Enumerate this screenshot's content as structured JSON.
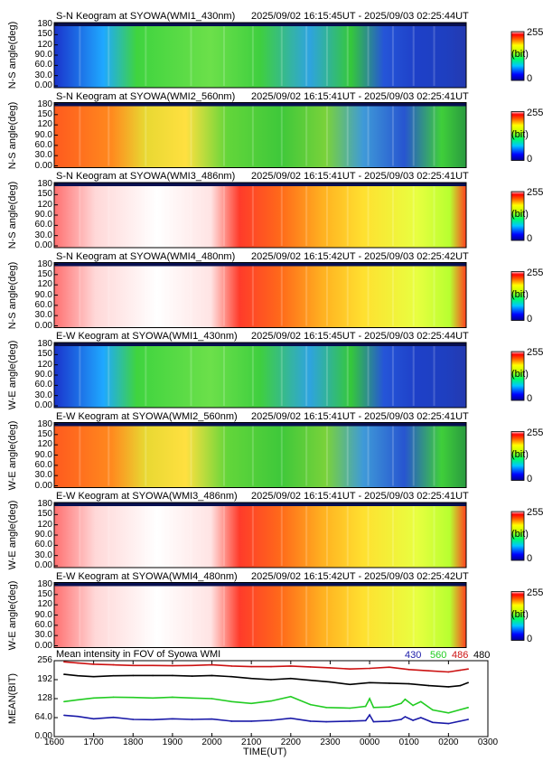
{
  "colorbar": {
    "max_label": "255",
    "unit_label": "(bit)",
    "min_label": "0"
  },
  "panels": [
    {
      "title": "S-N Keogram at SYOWA(WMI1_430nm)",
      "time_range": "2025/09/02 16:15:45UT - 2025/09/03 02:25:44UT",
      "ylabel": "N-S angle(deg)",
      "yticks": [
        "180",
        "150",
        "120",
        "90.0",
        "60.0",
        "30.0",
        "0.00"
      ],
      "profile": "blue"
    },
    {
      "title": "S-N Keogram at SYOWA(WMI2_560nm)",
      "time_range": "2025/09/02 16:15:41UT - 2025/09/03 02:25:41UT",
      "ylabel": "N-S angle(deg)",
      "yticks": [
        "180",
        "150",
        "120",
        "90.0",
        "60.0",
        "30.0",
        "0.00"
      ],
      "profile": "green"
    },
    {
      "title": "S-N Keogram at SYOWA(WMI3_486nm)",
      "time_range": "2025/09/02 16:15:41UT - 2025/09/03 02:25:41UT",
      "ylabel": "N-S angle(deg)",
      "yticks": [
        "180",
        "150",
        "120",
        "90.0",
        "60.0",
        "30.0",
        "0.00"
      ],
      "profile": "red"
    },
    {
      "title": "S-N Keogram at SYOWA(WMI4_480nm)",
      "time_range": "2025/09/02 16:15:42UT - 2025/09/03 02:25:42UT",
      "ylabel": "N-S angle(deg)",
      "yticks": [
        "180",
        "150",
        "120",
        "90.0",
        "60.0",
        "30.0",
        "0.00"
      ],
      "profile": "red"
    },
    {
      "title": "E-W Keogram at SYOWA(WMI1_430nm)",
      "time_range": "2025/09/02 16:15:45UT - 2025/09/03 02:25:44UT",
      "ylabel": "W-E angle(deg)",
      "yticks": [
        "180",
        "150",
        "120",
        "90.0",
        "60.0",
        "30.0",
        "0.00"
      ],
      "profile": "blue"
    },
    {
      "title": "E-W Keogram at SYOWA(WMI2_560nm)",
      "time_range": "2025/09/02 16:15:41UT - 2025/09/03 02:25:41UT",
      "ylabel": "W-E angle(deg)",
      "yticks": [
        "180",
        "150",
        "120",
        "90.0",
        "60.0",
        "30.0",
        "0.00"
      ],
      "profile": "green"
    },
    {
      "title": "E-W Keogram at SYOWA(WMI3_486nm)",
      "time_range": "2025/09/02 16:15:41UT - 2025/09/03 02:25:41UT",
      "ylabel": "W-E angle(deg)",
      "yticks": [
        "180",
        "150",
        "120",
        "90.0",
        "60.0",
        "30.0",
        "0.00"
      ],
      "profile": "red"
    },
    {
      "title": "E-W Keogram at SYOWA(WMI4_480nm)",
      "time_range": "2025/09/02 16:15:42UT - 2025/09/03 02:25:42UT",
      "ylabel": "W-E angle(deg)",
      "yticks": [
        "180",
        "150",
        "120",
        "90.0",
        "60.0",
        "30.0",
        "0.00"
      ],
      "profile": "red"
    }
  ],
  "chart_data": {
    "type": "line",
    "title": "Mean intensity in FOV of Syowa WMI",
    "xlabel": "TIME(UT)",
    "ylabel": "MEAN(BIT)",
    "xticks": [
      "1600",
      "1700",
      "1800",
      "1900",
      "2000",
      "2100",
      "2200",
      "2300",
      "0000",
      "0100",
      "0200",
      "0300"
    ],
    "yticks": [
      "256",
      "192",
      "128",
      "64.0",
      "0.00"
    ],
    "xlim": [
      0,
      11
    ],
    "ylim": [
      0,
      256
    ],
    "series": [
      {
        "name": "430",
        "color": "#1a1aa8",
        "x": [
          0.25,
          0.6,
          1.0,
          1.5,
          2.0,
          2.5,
          3.0,
          3.5,
          4.0,
          4.5,
          5.0,
          5.5,
          6.0,
          6.5,
          6.9,
          7.5,
          7.9,
          8.0,
          8.1,
          8.5,
          8.8,
          8.9,
          9.1,
          9.3,
          9.6,
          10.0,
          10.5
        ],
        "y": [
          72,
          68,
          60,
          65,
          58,
          57,
          60,
          58,
          59,
          52,
          52,
          55,
          62,
          52,
          50,
          52,
          54,
          73,
          50,
          52,
          58,
          67,
          55,
          64,
          48,
          44,
          58
        ]
      },
      {
        "name": "560",
        "color": "#22cc22",
        "x": [
          0.25,
          0.6,
          1.0,
          1.5,
          2.0,
          2.5,
          3.0,
          3.5,
          4.0,
          4.5,
          5.0,
          5.5,
          6.0,
          6.5,
          6.9,
          7.5,
          7.9,
          8.0,
          8.1,
          8.5,
          8.8,
          8.9,
          9.1,
          9.3,
          9.6,
          10.0,
          10.5
        ],
        "y": [
          118,
          124,
          130,
          133,
          132,
          130,
          133,
          130,
          128,
          118,
          112,
          120,
          135,
          108,
          98,
          96,
          102,
          128,
          98,
          100,
          112,
          126,
          105,
          118,
          90,
          80,
          98
        ]
      },
      {
        "name": "486",
        "color": "#cc1111",
        "x": [
          0.25,
          0.6,
          1.0,
          1.5,
          2.0,
          2.5,
          3.0,
          3.5,
          4.0,
          4.5,
          5.0,
          5.5,
          6.0,
          6.5,
          7.0,
          7.5,
          8.0,
          8.5,
          9.0,
          9.5,
          10.0,
          10.3,
          10.5
        ],
        "y": [
          252,
          248,
          244,
          242,
          240,
          240,
          239,
          240,
          242,
          238,
          236,
          236,
          238,
          235,
          232,
          228,
          230,
          234,
          226,
          222,
          218,
          224,
          228
        ]
      },
      {
        "name": "480",
        "color": "#000000",
        "x": [
          0.25,
          0.6,
          1.0,
          1.5,
          2.0,
          2.5,
          3.0,
          3.5,
          4.0,
          4.5,
          5.0,
          5.5,
          6.0,
          6.5,
          7.0,
          7.5,
          8.0,
          8.5,
          9.0,
          9.5,
          10.0,
          10.3,
          10.5
        ],
        "y": [
          210,
          205,
          202,
          205,
          206,
          206,
          206,
          204,
          206,
          202,
          196,
          192,
          196,
          190,
          184,
          176,
          182,
          180,
          178,
          172,
          168,
          172,
          182
        ]
      }
    ]
  }
}
